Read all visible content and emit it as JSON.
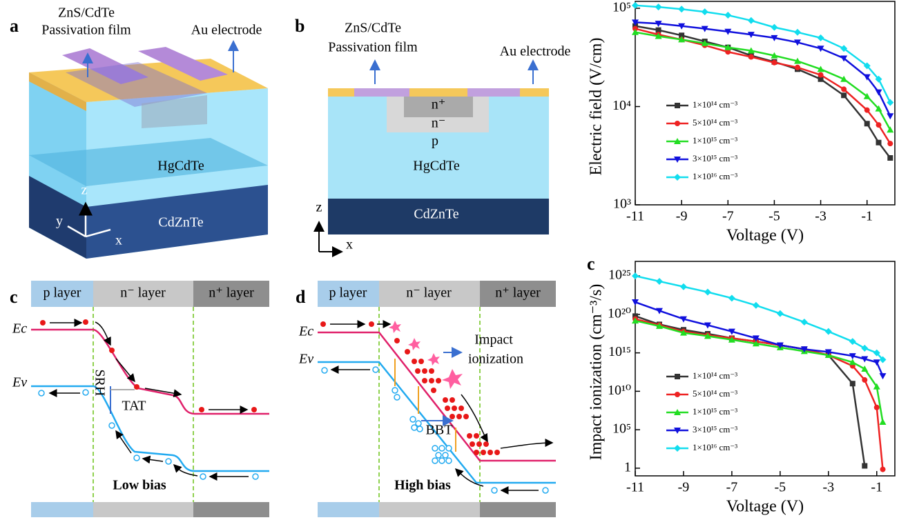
{
  "panels": {
    "a": {
      "label": "a",
      "film": [
        "ZnS/CdTe",
        "Passivation film"
      ],
      "electrode": "Au electrode",
      "layer1": "HgCdTe",
      "layer2": "CdZnTe",
      "axis_z": "z",
      "axis_y": "y",
      "axis_x": "x"
    },
    "b": {
      "label": "b",
      "film": [
        "ZnS/CdTe",
        "Passivation film"
      ],
      "electrode": "Au electrode",
      "n_plus": "n⁺",
      "n_minus": "n⁻",
      "p": "p",
      "layer1": "HgCdTe",
      "layer2": "CdZnTe",
      "axis_z": "z",
      "axis_x": "x"
    },
    "c": {
      "label": "c",
      "layers": [
        "p layer",
        "n⁻ layer",
        "n⁺ layer"
      ],
      "ec": "Ec",
      "ev": "Ev",
      "srh": "SRH",
      "tat": "TAT",
      "bias": "Low bias"
    },
    "d": {
      "label": "d",
      "layers": [
        "p layer",
        "n⁻ layer",
        "n⁺ layer"
      ],
      "ec": "Ec",
      "ev": "Ev",
      "impact": [
        "Impact",
        "ionization"
      ],
      "bbt": "BBT",
      "bias": "High bias"
    }
  },
  "chart_data": [
    {
      "type": "line",
      "y_label": "Electric field (V/cm)",
      "x_label": "Voltage (V)",
      "log_y": true,
      "legend": "lower left",
      "x": [
        -11,
        -10,
        -9,
        -8,
        -7,
        -6,
        -5,
        -4,
        -3,
        -2,
        -1,
        -0.5,
        0
      ],
      "xlim": [
        -11,
        0.2
      ],
      "xticks": [
        -11,
        -9,
        -7,
        -5,
        -3,
        -1
      ],
      "ylim": [
        1000,
        100000
      ],
      "yticks": [
        {
          "value": 1000,
          "label": "10³"
        },
        {
          "value": 10000,
          "label": "10⁴"
        },
        {
          "value": 100000,
          "label": "10⁵"
        }
      ],
      "series": [
        {
          "name": "1×10¹⁴ cm⁻³",
          "color": "#333333",
          "marker": "square",
          "values": [
            66000,
            60000,
            53000,
            46000,
            40000,
            33000,
            28500,
            24000,
            19000,
            13000,
            6700,
            4300,
            3000
          ]
        },
        {
          "name": "5×10¹⁴ cm⁻³",
          "color": "#ee2222",
          "marker": "circle",
          "values": [
            62000,
            54000,
            48000,
            42000,
            36000,
            32000,
            28000,
            25000,
            21000,
            15000,
            9200,
            6500,
            4200
          ]
        },
        {
          "name": "1×10¹⁵ cm⁻³",
          "color": "#22dd22",
          "marker": "triangle-up",
          "values": [
            57000,
            52000,
            48000,
            44000,
            40000,
            37000,
            33000,
            29000,
            24000,
            19000,
            12700,
            9500,
            5800
          ]
        },
        {
          "name": "3×10¹⁵ cm⁻³",
          "color": "#1010dd",
          "marker": "triangle-down",
          "values": [
            72000,
            70000,
            66000,
            62000,
            58000,
            54000,
            50000,
            45000,
            39000,
            31000,
            20000,
            14000,
            8000
          ]
        },
        {
          "name": "1×10¹⁶ cm⁻³",
          "color": "#11ddee",
          "marker": "diamond",
          "values": [
            107000,
            103000,
            98000,
            92000,
            85000,
            75000,
            64000,
            57000,
            50000,
            39000,
            26000,
            19000,
            11000
          ]
        }
      ]
    },
    {
      "type": "line",
      "label": "c",
      "y_label": "Impact ionization (cm⁻³/s)",
      "x_label": "Voltage (V)",
      "log_y": true,
      "legend": "lower left",
      "x": [
        -11,
        -10,
        -9,
        -8,
        -7,
        -6,
        -5,
        -4,
        -3,
        -2,
        -1.5,
        -1,
        -0.75
      ],
      "xlim": [
        -11,
        -0.25
      ],
      "xticks": [
        -11,
        -9,
        -7,
        -5,
        -3,
        -1
      ],
      "ylim": [
        0.1,
        1e+26
      ],
      "yticks": [
        1,
        {
          "value": 100000,
          "label": "10⁵"
        },
        {
          "value": 10000000000.0,
          "label": "10¹⁰"
        },
        {
          "value": 1000000000000000.0,
          "label": "10¹⁵"
        },
        {
          "value": 1e+20,
          "label": "10²⁰"
        },
        {
          "value": 1e+25,
          "label": "10²⁵"
        }
      ],
      "series": [
        {
          "name": "1×10¹⁴ cm⁻³",
          "color": "#333333",
          "marker": "square",
          "values": [
            6e+19,
            5e+18,
            1e+18,
            3e+17,
            8e+16,
            3e+16,
            1e+16,
            3000000000000000.0,
            500000000000000.0,
            100000000000.0,
            2,
            null,
            null
          ]
        },
        {
          "name": "5×10¹⁴ cm⁻³",
          "color": "#ee2222",
          "marker": "circle",
          "values": [
            2.5e+19,
            4e+18,
            6e+17,
            2e+17,
            8e+16,
            3e+16,
            1e+16,
            3000000000000000.0,
            500000000000000.0,
            20000000000000.0,
            300000000000.0,
            80000000.0,
            0.7
          ]
        },
        {
          "name": "1×10¹⁵ cm⁻³",
          "color": "#22dd22",
          "marker": "triangle-up",
          "values": [
            1.5e+19,
            3e+18,
            4e+17,
            1.5e+17,
            5e+16,
            1.6e+16,
            5000000000000000.0,
            1600000000000000.0,
            500000000000000.0,
            60000000000000.0,
            8000000000000.0,
            40000000000.0,
            1000000.0
          ]
        },
        {
          "name": "3×10¹⁵ cm⁻³",
          "color": "#1010dd",
          "marker": "triangle-down",
          "values": [
            4e+21,
            3e+20,
            2.5e+19,
            4e+18,
            6e+17,
            8e+16,
            1e+16,
            3000000000000000.0,
            1300000000000000.0,
            400000000000000.0,
            160000000000000.0,
            60000000000000.0,
            1000000000000.0
          ]
        },
        {
          "name": "1×10¹⁶ cm⁻³",
          "color": "#11ddee",
          "marker": "diamond",
          "values": [
            1e+25,
            2e+24,
            4e+23,
            8e+22,
            1.3e+22,
            1.5e+21,
            1.3e+20,
            1e+19,
            6e+17,
            3e+16,
            4000000000000000.0,
            1000000000000000.0,
            130000000000000.0
          ]
        }
      ]
    }
  ]
}
